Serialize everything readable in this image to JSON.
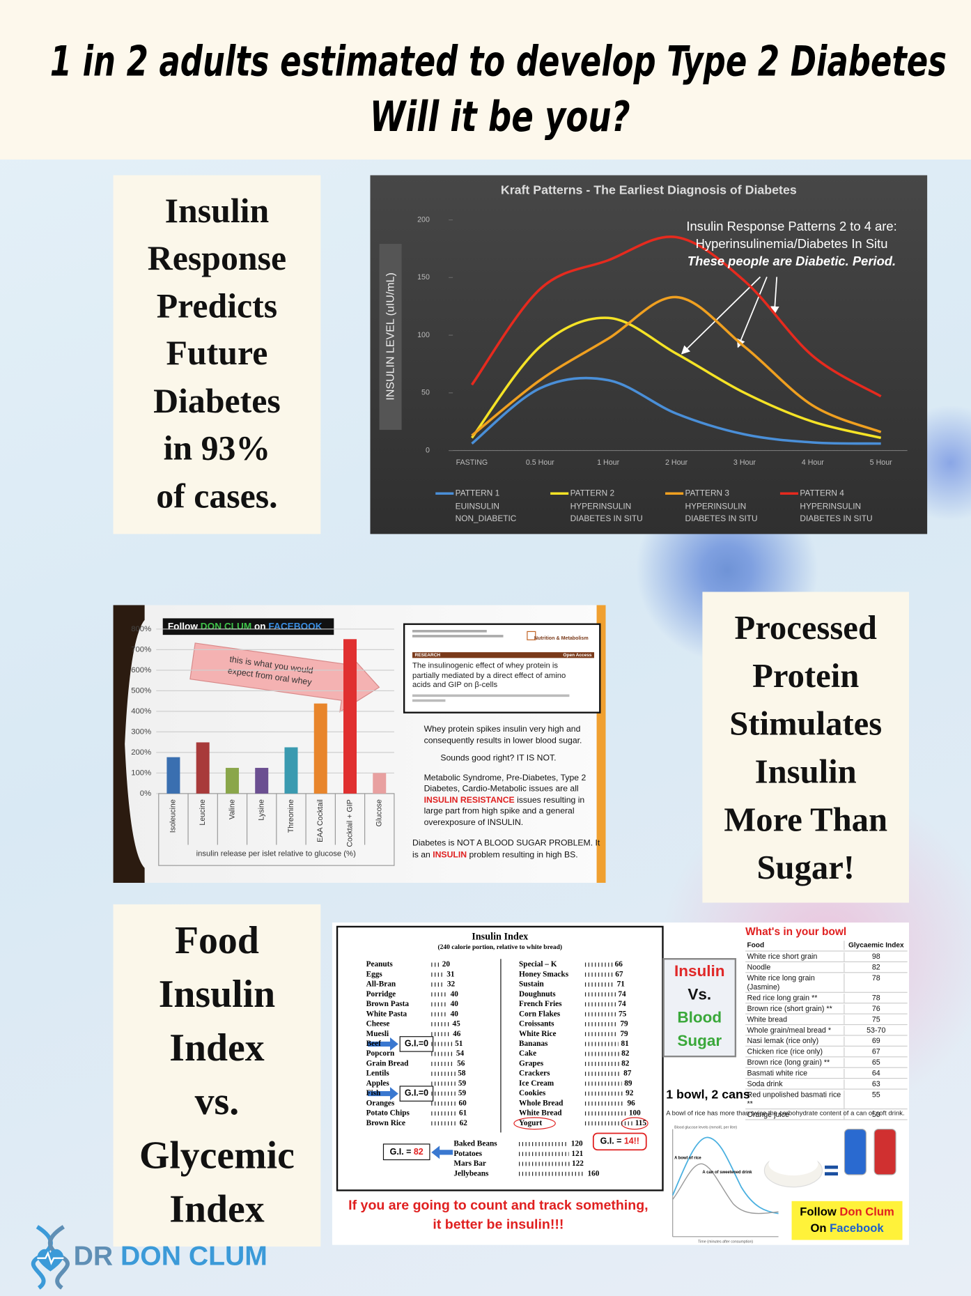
{
  "header": {
    "lines": [
      "1 in 2 adults estimated to develop Type 2 Diabetes",
      "Will it be you?"
    ]
  },
  "insulin_response_note": {
    "lines": [
      "Insulin",
      "Response",
      "Predicts",
      "Future",
      "Diabetes",
      "in 93%",
      "of cases."
    ]
  },
  "processed_protein_note": {
    "lines": [
      "Processed",
      "Protein",
      "Stimulates",
      "Insulin",
      "More Than",
      "Sugar!"
    ]
  },
  "food_insulin_note": {
    "lines": [
      "Food",
      "Insulin",
      "Index",
      "vs.",
      "Glycemic",
      "Index"
    ]
  },
  "chart_data": [
    {
      "type": "line",
      "title": "Kraft Patterns - The Earliest Diagnosis of Diabetes",
      "y_label": "INSULIN LEVEL (uIU/mL)",
      "categories": [
        "FASTING",
        "0.5 Hour",
        "1 Hour",
        "2 Hour",
        "3 Hour",
        "4 Hour",
        "5 Hour"
      ],
      "ylim": [
        0,
        200
      ],
      "yticks": [
        0,
        50,
        100,
        150,
        200
      ],
      "grid": false,
      "annotation_lines": [
        "Insulin Response Patterns 2 to 4 are:",
        "Hyperinsulinemia/Diabetes  In Situ",
        "These people are Diabetic. Period."
      ],
      "series": [
        {
          "name": "PATTERN 1",
          "description": [
            "EUINSULIN",
            "NON_DIABETIC"
          ],
          "color": "#4a8fd8",
          "values": [
            6,
            54,
            61,
            32,
            14,
            7,
            6
          ]
        },
        {
          "name": "PATTERN 2",
          "description": [
            "HYPERINSULIN",
            "DIABETES IN SITU"
          ],
          "color": "#f5e326",
          "values": [
            11,
            90,
            115,
            84,
            50,
            25,
            11
          ]
        },
        {
          "name": "PATTERN 3",
          "description": [
            "HYPERINSULIN",
            "DIABETES IN SITU"
          ],
          "color": "#f0a020",
          "values": [
            13,
            61,
            97,
            133,
            90,
            39,
            16
          ]
        },
        {
          "name": "PATTERN 4",
          "description": [
            "HYPERINSULIN",
            "DIABETES IN SITU"
          ],
          "color": "#e62a1e",
          "values": [
            57,
            140,
            165,
            185,
            147,
            82,
            47
          ]
        }
      ]
    },
    {
      "type": "bar",
      "x_label": "insulin release per islet relative to glucose (%)",
      "categories": [
        "Isoleucine",
        "Leucine",
        "Valine",
        "Lysine",
        "Threonine",
        "EAA Cocktail",
        "Cocktail + GIP",
        "Glucose"
      ],
      "values": [
        177,
        249,
        125,
        125,
        225,
        438,
        751,
        100
      ],
      "colors": [
        "#3a6fb0",
        "#a83a3a",
        "#8aa64a",
        "#6b4f91",
        "#3a9ab0",
        "#e8852b",
        "#e03030",
        "#e8a0a0"
      ],
      "ylim": [
        0,
        800
      ],
      "yticks": [
        {
          "value": 0,
          "label": "0%"
        },
        {
          "value": 100,
          "label": "100%"
        },
        {
          "value": 200,
          "label": "200%"
        },
        {
          "value": 300,
          "label": "300%"
        },
        {
          "value": 400,
          "label": "400%"
        },
        {
          "value": 500,
          "label": "500%"
        },
        {
          "value": 600,
          "label": "600%"
        },
        {
          "value": 700,
          "label": "700%"
        },
        {
          "value": 800,
          "label": "800%"
        }
      ],
      "grid": true
    }
  ],
  "whey_panel": {
    "banner": {
      "parts": [
        {
          "text": "Follow ",
          "color": "#ffffff"
        },
        {
          "text": "DON CLUM",
          "color": "#3fc24a"
        },
        {
          "text": " on ",
          "color": "#ffffff"
        },
        {
          "text": "FACEBOOK",
          "color": "#3a8de0"
        }
      ]
    },
    "arrow_text": [
      "this is what you would",
      "expect from oral whey"
    ],
    "paper": {
      "journal": "Nutrition & Metabolism",
      "section": "RESEARCH",
      "access": "Open Access",
      "title": "The insulinogenic effect of whey protein is partially mediated by a direct effect of amino acids and GIP on β-cells"
    },
    "paragraphs": [
      {
        "parts": [
          {
            "text": "Whey protein spikes insulin very high and consequently results in lower blood sugar."
          }
        ]
      },
      {
        "parts": [
          {
            "text": "Sounds good right? IT IS NOT."
          }
        ]
      },
      {
        "parts": [
          {
            "text": "Metabolic Syndrome, Pre-Diabetes, Type 2 Diabetes, Cardio-Metabolic issues are all "
          },
          {
            "text": "INSULIN RESISTANCE",
            "color": "#e02020"
          },
          {
            "text": " issues resulting in large part from high spike and a general overexposure of INSULIN."
          }
        ]
      },
      {
        "parts": [
          {
            "text": "Diabetes is NOT A BLOOD SUGAR PROBLEM. It is an "
          },
          {
            "text": "INSULIN",
            "color": "#e02020"
          },
          {
            "text": " problem resulting in high BS."
          }
        ]
      }
    ]
  },
  "insulin_index": {
    "title": "Insulin Index",
    "subtitle": "(240 calorie portion, relative to white bread)",
    "left": [
      {
        "name": "Peanuts",
        "value": 20
      },
      {
        "name": "Eggs",
        "value": 31
      },
      {
        "name": "All-Bran",
        "value": 32
      },
      {
        "name": "Porridge",
        "value": 40
      },
      {
        "name": "Brown Pasta",
        "value": 40
      },
      {
        "name": "White Pasta",
        "value": 40
      },
      {
        "name": "Cheese",
        "value": 45
      },
      {
        "name": "Muesli",
        "value": 46
      },
      {
        "name": "Beef",
        "value": 51
      },
      {
        "name": "Popcorn",
        "value": 54
      },
      {
        "name": "Grain Bread",
        "value": 56
      },
      {
        "name": "Lentils",
        "value": 58
      },
      {
        "name": "Apples",
        "value": 59
      },
      {
        "name": "Fish",
        "value": 59
      },
      {
        "name": "Oranges",
        "value": 60
      },
      {
        "name": "Potato Chips",
        "value": 61
      },
      {
        "name": "Brown Rice",
        "value": 62
      }
    ],
    "right": [
      {
        "name": "Special – K",
        "value": 66
      },
      {
        "name": "Honey Smacks",
        "value": 67
      },
      {
        "name": "Sustain",
        "value": 71
      },
      {
        "name": "Doughnuts",
        "value": 74
      },
      {
        "name": "French Fries",
        "value": 74
      },
      {
        "name": "Corn Flakes",
        "value": 75
      },
      {
        "name": "Croissants",
        "value": 79
      },
      {
        "name": "White Rice",
        "value": 79
      },
      {
        "name": "Bananas",
        "value": 81
      },
      {
        "name": "Cake",
        "value": 82
      },
      {
        "name": "Grapes",
        "value": 82
      },
      {
        "name": "Crackers",
        "value": 87
      },
      {
        "name": "Ice Cream",
        "value": 89
      },
      {
        "name": "Cookies",
        "value": 92
      },
      {
        "name": "Whole Bread",
        "value": 96
      },
      {
        "name": "White Bread",
        "value": 100
      },
      {
        "name": "Yogurt",
        "value": 115
      }
    ],
    "bottom": [
      {
        "name": "Baked Beans",
        "value": 120
      },
      {
        "name": "Potatoes",
        "value": 121
      },
      {
        "name": "Mars Bar",
        "value": 122
      },
      {
        "name": "Jellybeans",
        "value": 160
      }
    ],
    "callouts": [
      {
        "parts": [
          {
            "text": "G.I.=0"
          }
        ]
      },
      {
        "parts": [
          {
            "text": "G.I.=0"
          }
        ]
      },
      {
        "parts": [
          {
            "text": "G.I. = "
          },
          {
            "text": "82",
            "color": "#e02020"
          }
        ]
      },
      {
        "parts": [
          {
            "text": "G.I. = "
          },
          {
            "text": "14!!",
            "color": "#e02020"
          }
        ]
      }
    ],
    "footer": [
      "If you are going to count and track something,",
      "it better be insulin!!!"
    ]
  },
  "glycemic_panel": {
    "vs_box": [
      {
        "text": "Insulin",
        "color": "#e02828"
      },
      {
        "text": "Vs.",
        "color": "#111111"
      },
      {
        "text": "Blood",
        "color": "#3aa83a"
      },
      {
        "text": "Sugar",
        "color": "#3aa83a"
      }
    ],
    "bowl_caption": "1 bowl, 2 cans",
    "table": {
      "title": "What's in your bowl",
      "headers": [
        "Food",
        "Glycaemic  Index"
      ],
      "rows": [
        [
          "White rice short grain",
          "98"
        ],
        [
          "Noodle",
          "82"
        ],
        [
          "White rice long grain (Jasmine)",
          "78"
        ],
        [
          "Red rice long grain **",
          "78"
        ],
        [
          "Brown rice (short grain) **",
          "76"
        ],
        [
          "White bread",
          "75"
        ],
        [
          "Whole grain/meal bread *",
          "53-70"
        ],
        [
          "Nasi lemak (rice only)",
          "69"
        ],
        [
          "Chicken rice (rice only)",
          "67"
        ],
        [
          "Brown rice (long grain) **",
          "65"
        ],
        [
          "Basmati white rice",
          "64"
        ],
        [
          "Soda drink",
          "63"
        ],
        [
          "Red unpolished basmati rice **",
          "55"
        ],
        [
          "Orange juice",
          "50"
        ]
      ]
    },
    "rice_note": "A bowl of rice has more than twice the carbohydrate content of a can of soft drink.",
    "mini_chart": {
      "title": "Blood glucose levels (mmol/L per litre)",
      "rice_label": "A bowl of rice",
      "drink_label": "A can of sweetened drink",
      "x_label": "Time (minutes after consumption)"
    },
    "follow": [
      {
        "parts": [
          {
            "text": "Follow "
          },
          {
            "text": "Don Clum",
            "color": "#e02020"
          }
        ]
      },
      {
        "parts": [
          {
            "text": "On "
          },
          {
            "text": "Facebook",
            "color": "#1a5fd0"
          }
        ]
      }
    ]
  },
  "logo": {
    "parts": [
      {
        "text": "DR ",
        "color": "#5f8fb5"
      },
      {
        "text": "DON CLUM",
        "color": "#3b9ad8"
      }
    ]
  }
}
